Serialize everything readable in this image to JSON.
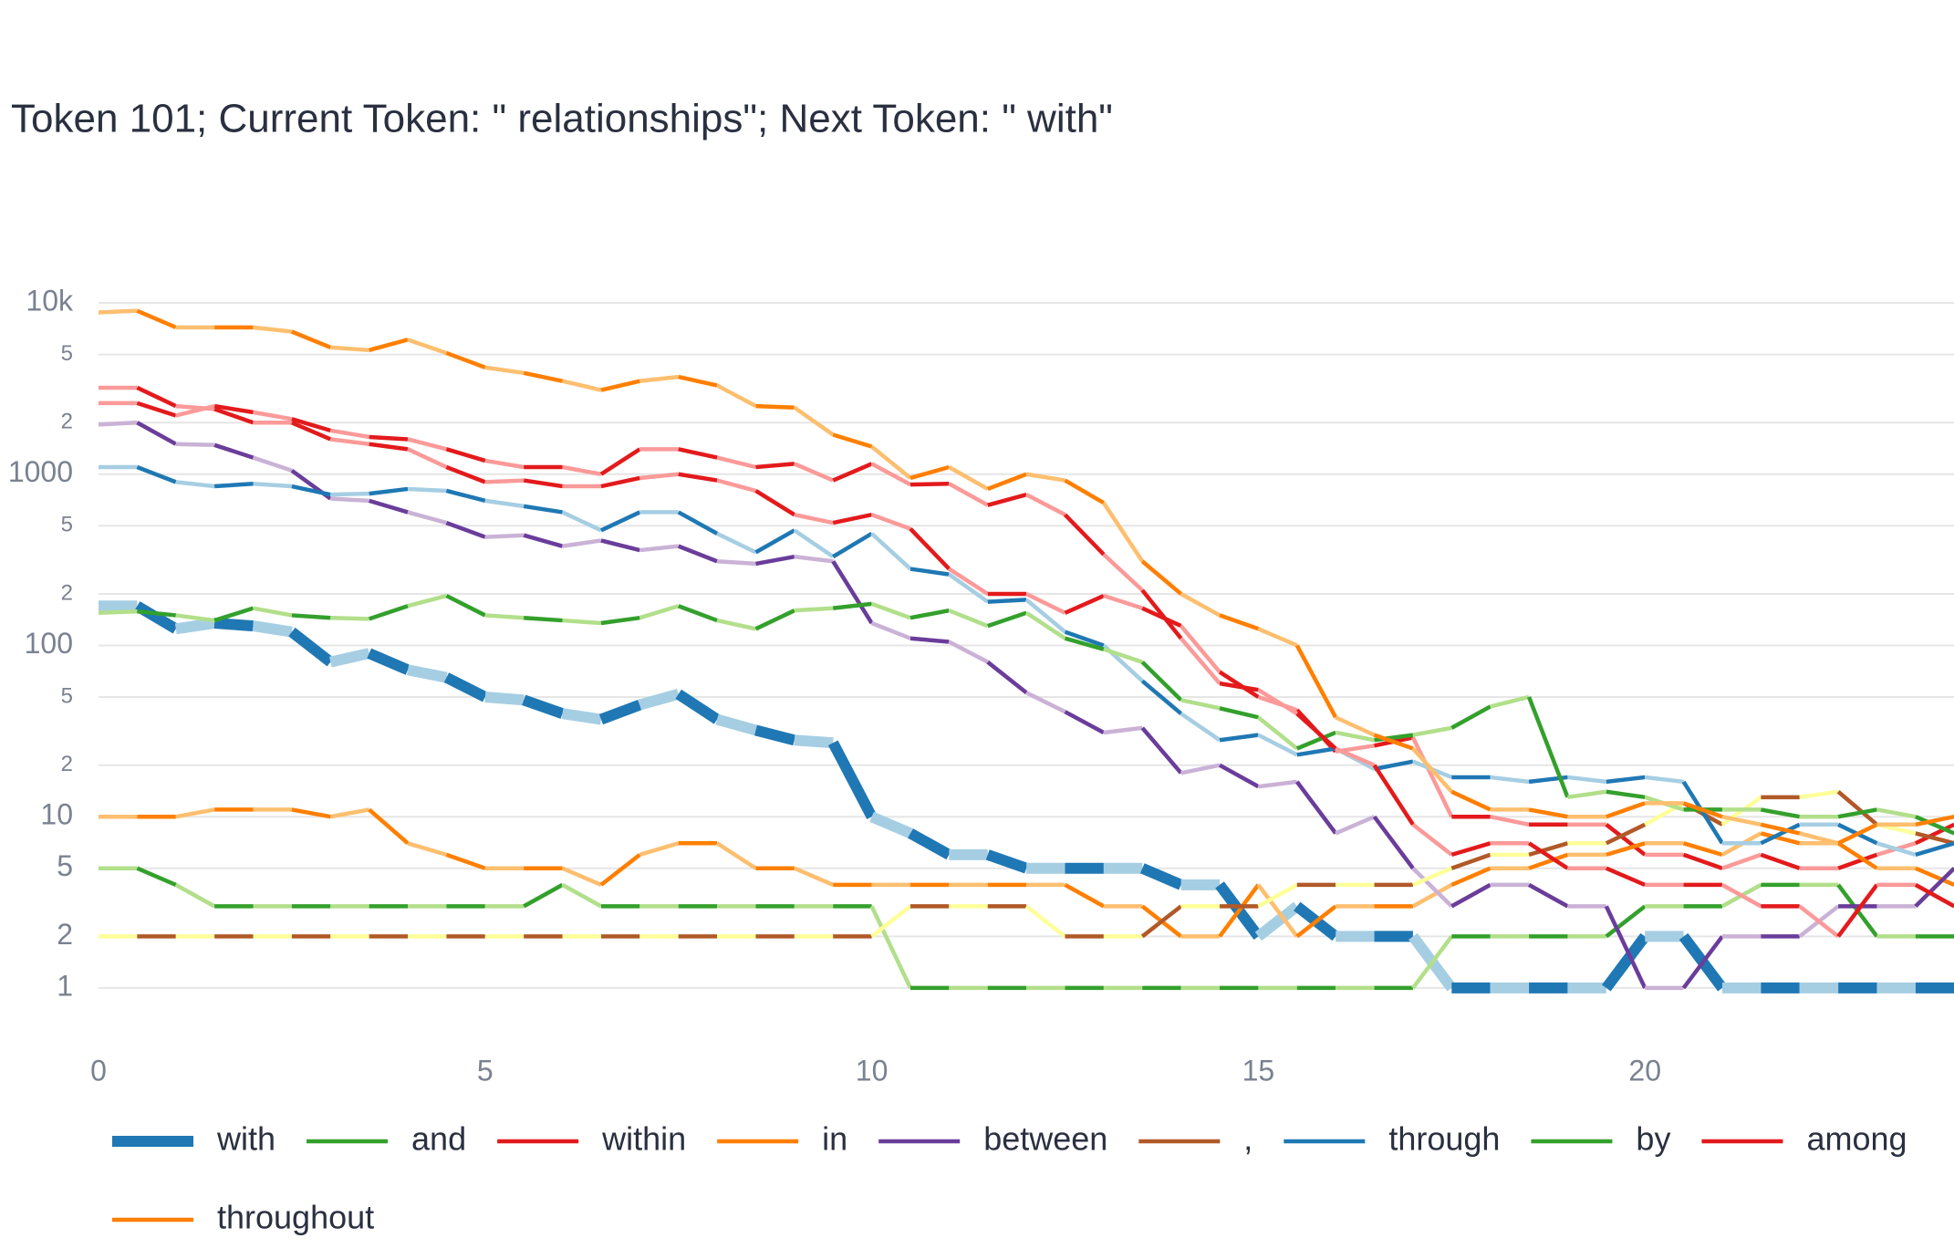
{
  "chart_data": {
    "type": "line",
    "title": "Token 101; Current Token: \" relationships\"; Next Token: \" with\"",
    "log_y": true,
    "grid": true,
    "legend": "bottom",
    "xlim": [
      0,
      24
    ],
    "xticks": [
      0,
      5,
      10,
      15,
      20
    ],
    "ylim": [
      0.7,
      15000
    ],
    "yticks": [
      1,
      2,
      5,
      10,
      {
        "value": 20,
        "label": "2"
      },
      {
        "value": 50,
        "label": "5"
      },
      100,
      {
        "value": 200,
        "label": "2"
      },
      {
        "value": 500,
        "label": "5"
      },
      1000,
      {
        "value": 2000,
        "label": "2"
      },
      {
        "value": 5000,
        "label": "5"
      },
      {
        "value": 10000,
        "label": "10k"
      }
    ],
    "x": [
      0,
      0.5,
      1,
      1.5,
      2,
      2.5,
      3,
      3.5,
      4,
      4.5,
      5,
      5.5,
      6,
      6.5,
      7,
      7.5,
      8,
      8.5,
      9,
      9.5,
      10,
      10.5,
      11,
      11.5,
      12,
      12.5,
      13,
      13.5,
      14,
      14.5,
      15,
      15.5,
      16,
      16.5,
      17,
      17.5,
      18,
      18.5,
      19,
      19.5,
      20,
      20.5,
      21,
      21.5,
      22,
      22.5,
      23,
      23.5,
      24
    ],
    "series": [
      {
        "name": "with",
        "color": "#1f78b4",
        "light_color": "#a6cee3",
        "line_width": 12,
        "values": [
          170,
          170,
          125,
          135,
          130,
          120,
          80,
          90,
          72,
          65,
          50,
          48,
          40,
          37,
          45,
          52,
          37,
          32,
          28,
          27,
          10,
          8,
          6,
          6,
          5,
          5,
          5,
          5,
          4,
          4,
          2,
          3,
          2,
          2,
          2,
          1,
          1,
          1,
          1,
          1,
          2,
          2,
          1,
          1,
          1,
          1,
          1,
          1,
          1
        ]
      },
      {
        "name": "and",
        "color": "#33a02c",
        "light_color": "#b2df8a",
        "line_width": 4.5,
        "values": [
          5,
          5,
          4,
          3,
          3,
          3,
          3,
          3,
          3,
          3,
          3,
          3,
          4,
          3,
          3,
          3,
          3,
          3,
          3,
          3,
          3,
          1,
          1,
          1,
          1,
          1,
          1,
          1,
          1,
          1,
          1,
          1,
          1,
          1,
          1,
          2,
          2,
          2,
          2,
          2,
          3,
          3,
          3,
          4,
          4,
          4,
          2,
          2,
          2
        ]
      },
      {
        "name": "within",
        "color": "#e31a1c",
        "light_color": "#fb9a99",
        "line_width": 4.5,
        "values": [
          3200,
          3200,
          2500,
          2400,
          2000,
          2000,
          1600,
          1500,
          1400,
          1100,
          900,
          920,
          850,
          850,
          950,
          1000,
          920,
          800,
          580,
          520,
          580,
          480,
          280,
          200,
          200,
          155,
          195,
          165,
          130,
          70,
          50,
          42,
          24,
          26,
          29,
          10,
          10,
          9,
          9,
          9,
          6,
          6,
          5,
          6,
          5,
          5,
          6,
          7,
          9
        ]
      },
      {
        "name": "in",
        "color": "#ff7f00",
        "light_color": "#fdbf6f",
        "line_width": 4.5,
        "values": [
          10,
          10,
          10,
          11,
          11,
          11,
          10,
          11,
          7,
          6,
          5,
          5,
          5,
          4,
          6,
          7,
          7,
          5,
          5,
          4,
          4,
          4,
          4,
          4,
          4,
          4,
          3,
          3,
          2,
          2,
          4,
          2,
          3,
          3,
          3,
          4,
          5,
          5,
          6,
          6,
          7,
          7,
          6,
          8,
          7,
          7,
          5,
          5,
          4
        ]
      },
      {
        "name": "between",
        "color": "#6a3d9a",
        "light_color": "#cab2d6",
        "line_width": 4.5,
        "values": [
          1950,
          2000,
          1500,
          1480,
          1250,
          1050,
          720,
          700,
          600,
          520,
          430,
          440,
          380,
          410,
          360,
          380,
          310,
          300,
          330,
          310,
          135,
          110,
          105,
          80,
          53,
          41,
          31,
          33,
          18,
          20,
          15,
          16,
          8,
          10,
          5,
          3,
          4,
          4,
          3,
          3,
          1,
          1,
          2,
          2,
          2,
          3,
          3,
          3,
          5
        ]
      },
      {
        "name": ",",
        "color": "#b15928",
        "light_color": "#ffff99",
        "line_width": 4.5,
        "values": [
          2,
          2,
          2,
          2,
          2,
          2,
          2,
          2,
          2,
          2,
          2,
          2,
          2,
          2,
          2,
          2,
          2,
          2,
          2,
          2,
          2,
          3,
          3,
          3,
          3,
          2,
          2,
          2,
          3,
          3,
          3,
          4,
          4,
          4,
          4,
          5,
          6,
          6,
          7,
          7,
          9,
          12,
          9,
          13,
          13,
          14,
          9,
          8,
          7
        ]
      },
      {
        "name": "through",
        "color": "#1f78b4",
        "light_color": "#a6cee3",
        "line_width": 4.5,
        "values": [
          1100,
          1100,
          900,
          850,
          880,
          850,
          760,
          770,
          820,
          800,
          700,
          650,
          600,
          470,
          600,
          600,
          450,
          350,
          470,
          330,
          450,
          280,
          260,
          180,
          185,
          120,
          100,
          62,
          40,
          28,
          30,
          23,
          25,
          19,
          21,
          17,
          17,
          16,
          17,
          16,
          17,
          16,
          7,
          7,
          9,
          9,
          7,
          6,
          7
        ]
      },
      {
        "name": "by",
        "color": "#33a02c",
        "light_color": "#b2df8a",
        "line_width": 4.5,
        "values": [
          155,
          158,
          150,
          140,
          165,
          150,
          145,
          143,
          170,
          195,
          150,
          145,
          140,
          135,
          145,
          170,
          140,
          125,
          160,
          165,
          175,
          145,
          160,
          130,
          155,
          110,
          95,
          80,
          48,
          43,
          38,
          25,
          31,
          28,
          30,
          33,
          44,
          50,
          13,
          14,
          13,
          11,
          11,
          11,
          10,
          10,
          11,
          10,
          8
        ]
      },
      {
        "name": "among",
        "color": "#e31a1c",
        "light_color": "#fb9a99",
        "line_width": 4.5,
        "values": [
          2600,
          2600,
          2200,
          2500,
          2300,
          2100,
          1800,
          1650,
          1600,
          1400,
          1200,
          1100,
          1100,
          1000,
          1400,
          1400,
          1250,
          1100,
          1150,
          920,
          1150,
          870,
          880,
          660,
          760,
          580,
          340,
          210,
          110,
          60,
          55,
          40,
          25,
          20,
          9,
          6,
          7,
          7,
          5,
          5,
          4,
          4,
          4,
          3,
          3,
          2,
          4,
          4,
          3
        ]
      },
      {
        "name": "throughout",
        "color": "#ff7f00",
        "light_color": "#fdbf6f",
        "line_width": 4.5,
        "values": [
          8800,
          9000,
          7200,
          7200,
          7200,
          6800,
          5500,
          5300,
          6100,
          5100,
          4200,
          3900,
          3500,
          3100,
          3500,
          3700,
          3300,
          2500,
          2450,
          1700,
          1450,
          950,
          1100,
          820,
          1000,
          920,
          680,
          310,
          200,
          150,
          125,
          100,
          38,
          30,
          25,
          14,
          11,
          11,
          10,
          10,
          12,
          12,
          10,
          9,
          8,
          7,
          9,
          9,
          10
        ]
      }
    ]
  }
}
